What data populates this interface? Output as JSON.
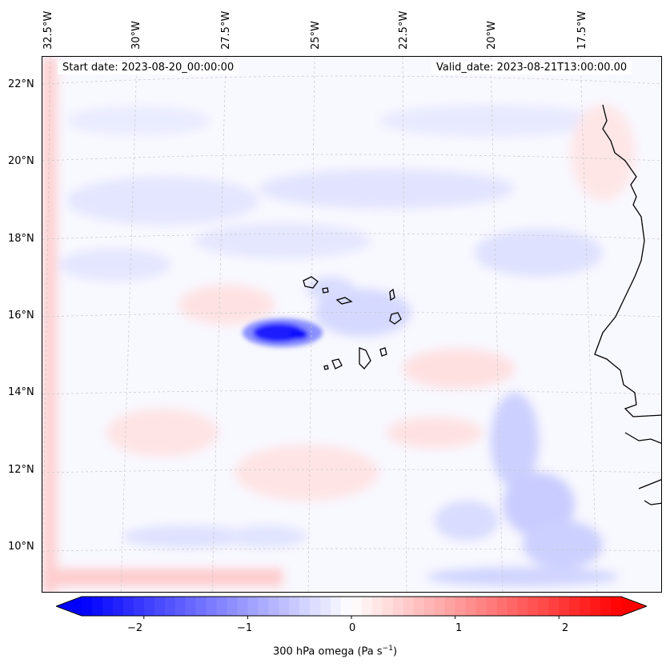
{
  "map": {
    "start_date_label": "Start date: 2023-08-20_00:00:00",
    "valid_date_label": "Valid_date: 2023-08-21T13:00:00.00",
    "longitude_labels": [
      "32.5°W",
      "30°W",
      "27.5°W",
      "25°W",
      "22.5°W",
      "20°W",
      "17.5°W"
    ],
    "latitude_labels": [
      "22°N",
      "20°N",
      "18°N",
      "16°N",
      "14°N",
      "12°N",
      "10°N"
    ],
    "projection_outline": "rotated lat-lon",
    "field_colors": {
      "strong_negative": "#0000ff",
      "weak_negative": "#d8daff",
      "neutral": "#f8f8ff",
      "weak_positive": "#ffd8d8",
      "strong_positive": "#ff0000"
    }
  },
  "colorbar": {
    "tick_labels": [
      "−2",
      "−1",
      "0",
      "1",
      "2"
    ],
    "tick_values": [
      -2,
      -1,
      0,
      1,
      2
    ],
    "range": [
      -2.6,
      2.6
    ],
    "label": "300 hPa omega (Pa s",
    "label_exponent": "−1",
    "label_close": ")"
  }
}
